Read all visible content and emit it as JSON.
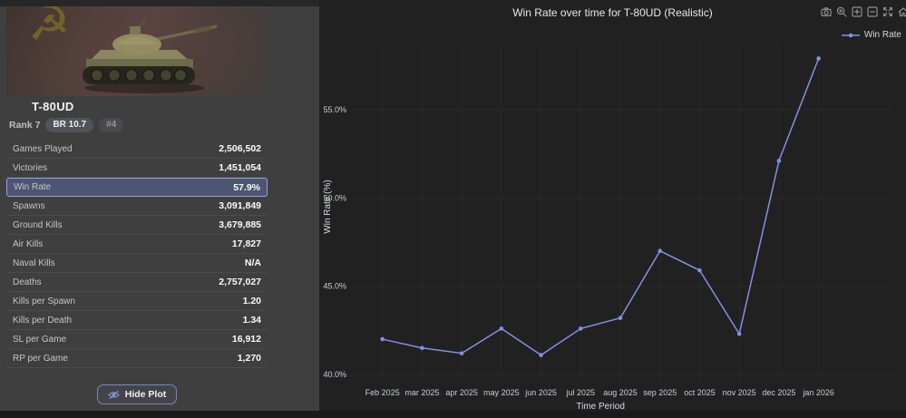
{
  "panel": {
    "vehicle_name": "T-80UD",
    "rank_label": "Rank 7",
    "br_badge": "BR 10.7",
    "position_badge": "#4",
    "stats": [
      {
        "label": "Games Played",
        "value": "2,506,502",
        "highlight": false
      },
      {
        "label": "Victories",
        "value": "1,451,054",
        "highlight": false
      },
      {
        "label": "Win Rate",
        "value": "57.9%",
        "highlight": true
      },
      {
        "label": "Spawns",
        "value": "3,091,849",
        "highlight": false
      },
      {
        "label": "Ground Kills",
        "value": "3,679,885",
        "highlight": false
      },
      {
        "label": "Air Kills",
        "value": "17,827",
        "highlight": false
      },
      {
        "label": "Naval Kills",
        "value": "N/A",
        "highlight": false
      },
      {
        "label": "Deaths",
        "value": "2,757,027",
        "highlight": false
      },
      {
        "label": "Kills per Spawn",
        "value": "1.20",
        "highlight": false
      },
      {
        "label": "Kills per Death",
        "value": "1.34",
        "highlight": false
      },
      {
        "label": "SL per Game",
        "value": "16,912",
        "highlight": false
      },
      {
        "label": "RP per Game",
        "value": "1,270",
        "highlight": false
      }
    ],
    "hide_plot_label": "Hide Plot",
    "highlight_bg_color": "#4c5571",
    "highlight_border_color": "#98a1d3"
  },
  "chart": {
    "title": "Win Rate over time for T-80UD (Realistic)",
    "legend": {
      "label": "Win Rate",
      "color": "#8590e4"
    },
    "modebar_icons": [
      "camera-icon",
      "zoom-icon",
      "zoom-in-icon",
      "zoom-out-icon",
      "autoscale-icon",
      "reset-axes-home-icon"
    ]
  },
  "chart_data": {
    "type": "line",
    "title": "Win Rate over time for T-80UD (Realistic)",
    "xlabel": "Time Period",
    "ylabel": "Win Rate (%)",
    "categories": [
      "Feb 2025",
      "mar 2025",
      "apr 2025",
      "may 2025",
      "jun 2025",
      "jul 2025",
      "aug 2025",
      "sep 2025",
      "oct 2025",
      "nov 2025",
      "dec 2025",
      "jan 2026"
    ],
    "series": [
      {
        "name": "Win Rate",
        "values": [
          42.0,
          41.5,
          41.2,
          42.6,
          41.1,
          42.6,
          43.2,
          47.0,
          45.9,
          42.3,
          52.1,
          57.9
        ]
      }
    ],
    "yticks": [
      {
        "value": 40,
        "label": "40.0%"
      },
      {
        "value": 45,
        "label": "45.0%"
      },
      {
        "value": 50,
        "label": "50.0%"
      },
      {
        "value": 55,
        "label": "55.0%"
      }
    ],
    "ylim": [
      39.5,
      58.7
    ],
    "grid": true,
    "grid_color": "#2a2a2d",
    "line_color": "#8590e4",
    "legend_position": "top-right"
  }
}
